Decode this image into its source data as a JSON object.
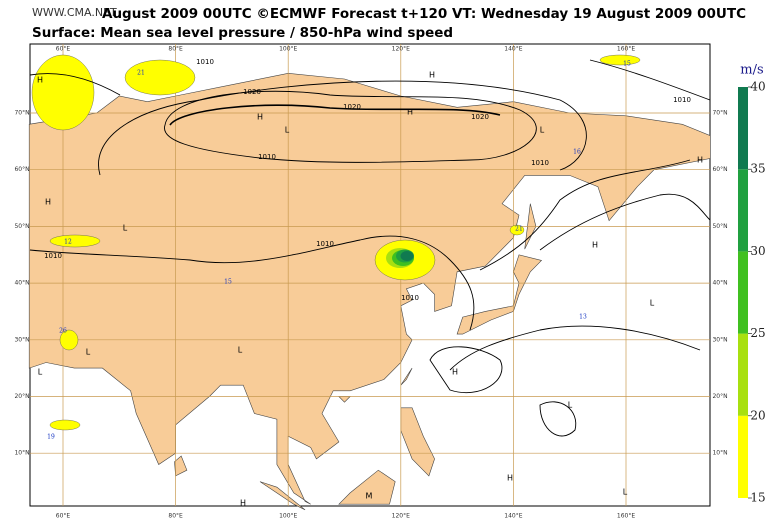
{
  "header": {
    "watermark": "WWW.CMA.NET",
    "title": "August 2009 00UTC ©ECMWF Forecast t+120 VT: Wednesday 19 August 2009 00UTC",
    "subtitle": "Surface: Mean sea level pressure / 850-hPa wind speed"
  },
  "map": {
    "lon_ticks": [
      {
        "value": 60,
        "label": "60°E"
      },
      {
        "value": 80,
        "label": "80°E"
      },
      {
        "value": 100,
        "label": "100°E"
      },
      {
        "value": 120,
        "label": "120°E"
      },
      {
        "value": 140,
        "label": "140°E"
      },
      {
        "value": 160,
        "label": "160°E"
      }
    ],
    "lat_ticks": [
      {
        "value": 70,
        "label": "70°N"
      },
      {
        "value": 60,
        "label": "60°N"
      },
      {
        "value": 50,
        "label": "50°N"
      },
      {
        "value": 40,
        "label": "40°N"
      },
      {
        "value": 30,
        "label": "30°N"
      },
      {
        "value": 20,
        "label": "20°N"
      },
      {
        "value": 10,
        "label": "10°N"
      }
    ],
    "isobar_labels": [
      "1010",
      "1020",
      "1020",
      "1020",
      "1010",
      "1010",
      "1010",
      "1010",
      "1010",
      "1010"
    ],
    "centers": [
      "H",
      "H",
      "L",
      "H",
      "L",
      "H",
      "L",
      "H",
      "H",
      "L",
      "H",
      "L",
      "L",
      "L",
      "H",
      "L",
      "H",
      "M",
      "H",
      "L"
    ],
    "speed_labels": [
      "21",
      "16",
      "12",
      "21",
      "13",
      "19",
      "26",
      "15",
      "15"
    ]
  },
  "colorbar": {
    "label": "m/s",
    "range": [
      15,
      40
    ],
    "ticks": [
      15,
      20,
      25,
      30,
      35,
      40
    ],
    "colors": [
      "#ffff00",
      "#a8e010",
      "#40c020",
      "#20a040",
      "#107a50"
    ]
  }
}
